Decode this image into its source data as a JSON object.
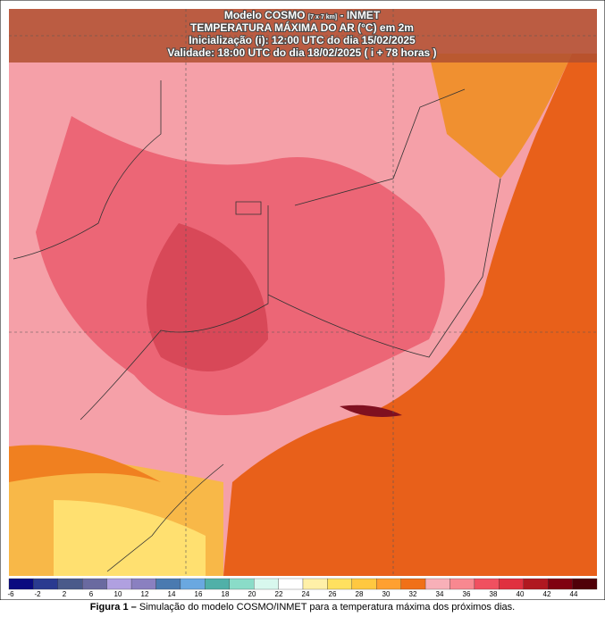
{
  "header": {
    "line1": {
      "model": "Modelo COSMO",
      "resolution": "[7 x 7 km]",
      "agency": "- INMET"
    },
    "line2": "TEMPERATURA MÁXIMA DO AR (°C) em 2m",
    "line3": "Inicialização (i): 12:00 UTC do dia 15/02/2025",
    "line4": "Validade: 18:00 UTC do dia 18/02/2025 ( i + 78 horas )"
  },
  "colorbar": {
    "labels": [
      "-6",
      "-2",
      "2",
      "6",
      "10",
      "12",
      "14",
      "16",
      "18",
      "20",
      "22",
      "24",
      "26",
      "28",
      "30",
      "32",
      "34",
      "36",
      "38",
      "40",
      "42",
      "44"
    ],
    "colors": [
      "#0a0a80",
      "#2a3a90",
      "#4a5a8a",
      "#6a6aa0",
      "#b0a0e0",
      "#8a80c0",
      "#4a7ab0",
      "#6aa8e0",
      "#50b0a8",
      "#8adcc8",
      "#d8f8ee",
      "#ffffff",
      "#fff0a8",
      "#ffe060",
      "#ffc840",
      "#ffa030",
      "#f07018",
      "#f8b0b8",
      "#f88890",
      "#f05060",
      "#e03040",
      "#b01820",
      "#800010",
      "#500008"
    ]
  },
  "caption": {
    "label": "Figura 1 –",
    "text": "Simulação do modelo COSMO/INMET para a temperatura máxima dos próximos dias."
  }
}
